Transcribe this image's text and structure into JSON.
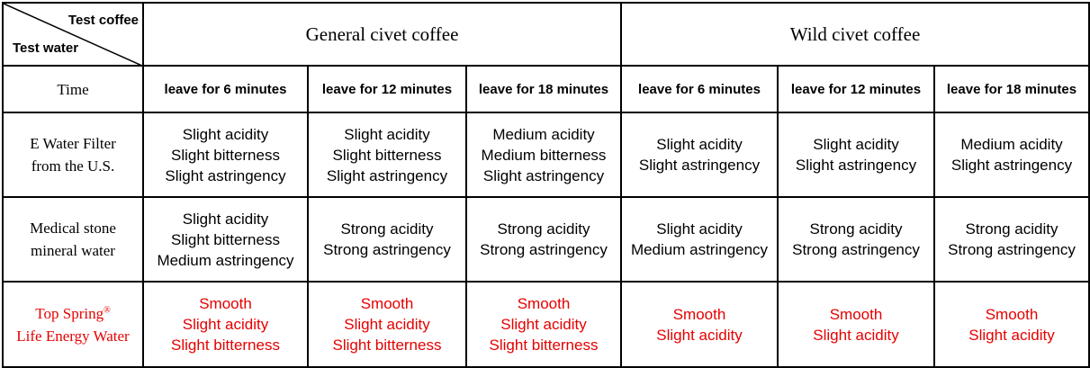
{
  "corner": {
    "top_label": "Test coffee",
    "bottom_label": "Test water"
  },
  "groups": [
    {
      "label": "General civet coffee"
    },
    {
      "label": "Wild civet coffee"
    }
  ],
  "time_row": {
    "label": "Time",
    "columns": [
      "leave for 6 minutes",
      "leave for 12 minutes",
      "leave for 18 minutes",
      "leave for 6 minutes",
      "leave for 12 minutes",
      "leave for 18 minutes"
    ]
  },
  "rows": [
    {
      "label_lines": [
        "E Water Filter",
        "from the U.S."
      ],
      "color": "#000000",
      "cells": [
        [
          "Slight acidity",
          "Slight bitterness",
          "Slight astringency"
        ],
        [
          "Slight acidity",
          "Slight bitterness",
          "Slight astringency"
        ],
        [
          "Medium acidity",
          "Medium bitterness",
          "Slight astringency"
        ],
        [
          "Slight acidity",
          "Slight astringency"
        ],
        [
          "Slight acidity",
          "Slight astringency"
        ],
        [
          "Medium acidity",
          "Slight astringency"
        ]
      ]
    },
    {
      "label_lines": [
        "Medical stone",
        "mineral water"
      ],
      "color": "#000000",
      "cells": [
        [
          "Slight acidity",
          "Slight bitterness",
          "Medium astringency"
        ],
        [
          "Strong acidity",
          "Strong astringency"
        ],
        [
          "Strong acidity",
          "Strong astringency"
        ],
        [
          "Slight acidity",
          "Medium astringency"
        ],
        [
          "Strong acidity",
          "Strong astringency"
        ],
        [
          "Strong acidity",
          "Strong astringency"
        ]
      ]
    },
    {
      "label_lines": [
        "Top Spring",
        "Life Energy Water"
      ],
      "label_mark": "®",
      "color": "#e60000",
      "cells": [
        [
          "Smooth",
          "Slight acidity",
          "Slight bitterness"
        ],
        [
          "Smooth",
          "Slight acidity",
          "Slight bitterness"
        ],
        [
          "Smooth",
          "Slight acidity",
          "Slight bitterness"
        ],
        [
          "Smooth",
          "Slight acidity"
        ],
        [
          "Smooth",
          "Slight acidity"
        ],
        [
          "Smooth",
          "Slight acidity"
        ]
      ]
    }
  ]
}
